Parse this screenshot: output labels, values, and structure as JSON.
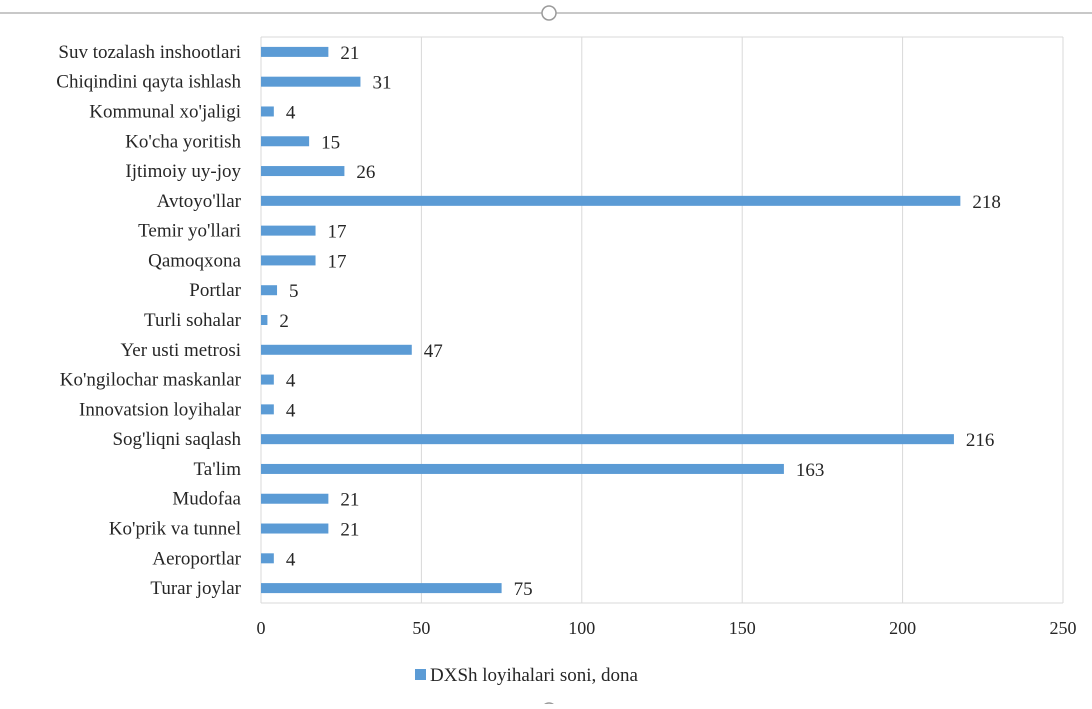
{
  "chart_data": {
    "type": "bar",
    "orientation": "horizontal",
    "categories": [
      "Suv tozalash inshootlari",
      "Chiqindini qayta ishlash",
      "Kommunal xo'jaligi",
      "Ko'cha yoritish",
      "Ijtimoiy uy-joy",
      "Avtoyo'llar",
      "Temir yo'llari",
      "Qamoqxona",
      "Portlar",
      "Turli sohalar",
      "Yer usti metrosi",
      "Ko'ngilochar maskanlar",
      "Innovatsion loyihalar",
      "Sog'liqni saqlash",
      "Ta'lim",
      "Mudofaa",
      "Ko'prik va tunnel",
      "Aeroportlar",
      "Turar joylar"
    ],
    "series": [
      {
        "name": "DXSh loyihalari soni, dona",
        "color": "#5b9bd5",
        "values": [
          21,
          31,
          4,
          15,
          26,
          218,
          17,
          17,
          5,
          2,
          47,
          4,
          4,
          216,
          163,
          21,
          21,
          4,
          75
        ]
      }
    ],
    "xlim": [
      0,
      250
    ],
    "xticks": [
      0,
      50,
      100,
      150,
      200,
      250
    ],
    "grid": true,
    "data_labels": true,
    "legend_position": "bottom"
  }
}
